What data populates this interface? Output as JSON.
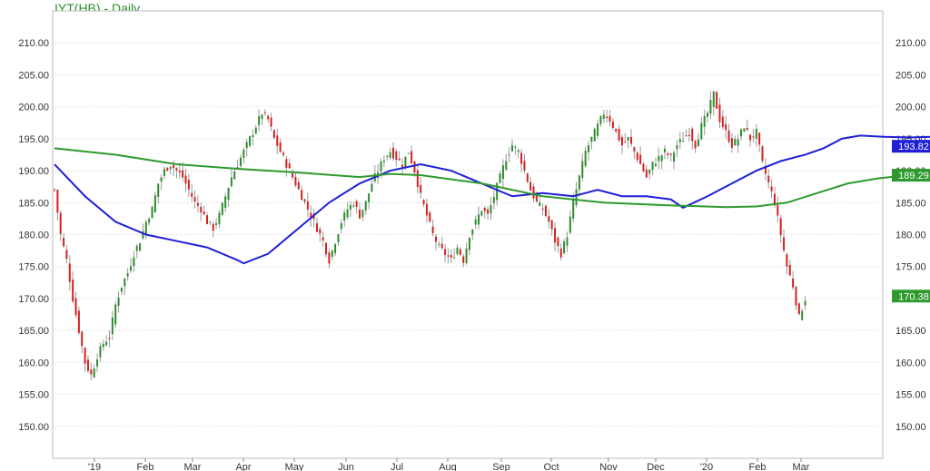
{
  "chart_data": {
    "type": "candlestick",
    "title": "IYT(HB) - Daily",
    "ylim": [
      145,
      215
    ],
    "grid": true,
    "y_ticks": [
      150,
      155,
      160,
      165,
      170,
      175,
      180,
      185,
      190,
      195,
      200,
      205,
      210
    ],
    "y_tick_labels": [
      "150.00",
      "155.00",
      "160.00",
      "165.00",
      "170.00",
      "175.00",
      "180.00",
      "185.00",
      "190.00",
      "195.00",
      "200.00",
      "205.00",
      "210.00"
    ],
    "x_tick_labels": [
      "'19",
      "Feb",
      "Mar",
      "Apr",
      "May",
      "Jun",
      "Jul",
      "Aug",
      "Sep",
      "Oct",
      "Nov",
      "Dec",
      "'20",
      "Feb",
      "Mar"
    ],
    "price_path": [
      [
        0,
        187
      ],
      [
        2,
        180
      ],
      [
        4,
        176
      ],
      [
        6,
        170
      ],
      [
        8,
        165
      ],
      [
        10,
        160
      ],
      [
        12,
        158
      ],
      [
        14,
        161
      ],
      [
        16,
        163
      ],
      [
        18,
        164
      ],
      [
        20,
        169
      ],
      [
        22,
        172
      ],
      [
        24,
        174
      ],
      [
        26,
        177
      ],
      [
        28,
        179
      ],
      [
        30,
        182
      ],
      [
        32,
        184
      ],
      [
        34,
        188
      ],
      [
        36,
        190
      ],
      [
        38,
        191
      ],
      [
        40,
        190
      ],
      [
        42,
        189
      ],
      [
        44,
        187
      ],
      [
        46,
        185
      ],
      [
        48,
        184
      ],
      [
        50,
        182
      ],
      [
        52,
        181
      ],
      [
        54,
        183
      ],
      [
        56,
        186
      ],
      [
        58,
        189
      ],
      [
        60,
        191
      ],
      [
        62,
        193
      ],
      [
        64,
        195
      ],
      [
        66,
        197
      ],
      [
        68,
        199
      ],
      [
        70,
        198
      ],
      [
        72,
        195
      ],
      [
        74,
        193
      ],
      [
        76,
        191
      ],
      [
        78,
        189
      ],
      [
        80,
        187
      ],
      [
        82,
        185
      ],
      [
        84,
        183
      ],
      [
        86,
        181
      ],
      [
        88,
        179
      ],
      [
        90,
        176
      ],
      [
        92,
        179
      ],
      [
        94,
        182
      ],
      [
        96,
        184
      ],
      [
        98,
        185
      ],
      [
        100,
        183
      ],
      [
        102,
        185
      ],
      [
        104,
        188
      ],
      [
        106,
        190
      ],
      [
        108,
        192
      ],
      [
        110,
        193
      ],
      [
        112,
        192
      ],
      [
        114,
        191
      ],
      [
        116,
        193
      ],
      [
        118,
        190
      ],
      [
        120,
        186
      ],
      [
        122,
        183
      ],
      [
        124,
        180
      ],
      [
        126,
        178
      ],
      [
        128,
        177
      ],
      [
        130,
        176
      ],
      [
        132,
        178
      ],
      [
        134,
        176
      ],
      [
        136,
        180
      ],
      [
        138,
        182
      ],
      [
        140,
        184
      ],
      [
        142,
        183
      ],
      [
        144,
        186
      ],
      [
        146,
        189
      ],
      [
        148,
        192
      ],
      [
        150,
        194
      ],
      [
        152,
        193
      ],
      [
        154,
        190
      ],
      [
        156,
        187
      ],
      [
        158,
        185
      ],
      [
        160,
        184
      ],
      [
        162,
        182
      ],
      [
        164,
        179
      ],
      [
        166,
        177
      ],
      [
        168,
        180
      ],
      [
        170,
        185
      ],
      [
        172,
        189
      ],
      [
        174,
        193
      ],
      [
        176,
        195
      ],
      [
        178,
        197
      ],
      [
        180,
        199
      ],
      [
        182,
        198
      ],
      [
        184,
        196
      ],
      [
        186,
        194
      ],
      [
        188,
        195
      ],
      [
        190,
        193
      ],
      [
        192,
        191
      ],
      [
        194,
        189
      ],
      [
        196,
        191
      ],
      [
        198,
        192
      ],
      [
        200,
        193
      ],
      [
        202,
        192
      ],
      [
        204,
        194
      ],
      [
        206,
        195
      ],
      [
        208,
        196
      ],
      [
        210,
        194
      ],
      [
        212,
        197
      ],
      [
        214,
        199
      ],
      [
        216,
        202
      ],
      [
        218,
        198
      ],
      [
        220,
        196
      ],
      [
        222,
        194
      ],
      [
        224,
        195
      ],
      [
        226,
        197
      ],
      [
        228,
        195
      ],
      [
        230,
        196
      ],
      [
        232,
        191
      ],
      [
        234,
        188
      ],
      [
        236,
        185
      ],
      [
        238,
        180
      ],
      [
        240,
        175
      ],
      [
        242,
        172
      ],
      [
        244,
        167
      ],
      [
        246,
        170
      ]
    ],
    "series": [
      {
        "name": "",
        "values_at": [
          [
            0,
            191
          ],
          [
            10,
            186
          ],
          [
            20,
            182
          ],
          [
            30,
            180
          ],
          [
            40,
            179
          ],
          [
            50,
            178
          ],
          [
            60,
            176
          ],
          [
            62,
            175.5
          ],
          [
            70,
            177
          ],
          [
            80,
            181
          ],
          [
            90,
            185
          ],
          [
            100,
            188
          ],
          [
            110,
            190
          ],
          [
            120,
            191
          ],
          [
            130,
            190
          ],
          [
            140,
            188
          ],
          [
            150,
            186
          ],
          [
            160,
            186.5
          ],
          [
            170,
            186
          ],
          [
            178,
            187
          ],
          [
            186,
            186
          ],
          [
            194,
            186
          ],
          [
            202,
            185.5
          ],
          [
            206,
            184.2
          ],
          [
            214,
            186
          ],
          [
            222,
            188
          ],
          [
            230,
            190
          ],
          [
            238,
            191.5
          ],
          [
            246,
            192.5
          ],
          [
            252,
            193.5
          ],
          [
            258,
            195
          ],
          [
            264,
            195.5
          ],
          [
            272,
            195.3
          ],
          [
            280,
            195.2
          ],
          [
            288,
            195.3
          ],
          [
            296,
            194
          ],
          [
            300,
            193.82
          ]
        ],
        "color": "#1f1fd8",
        "last_label": "193.82"
      },
      {
        "name": "",
        "values_at": [
          [
            0,
            193.5
          ],
          [
            20,
            192.5
          ],
          [
            40,
            191
          ],
          [
            60,
            190.3
          ],
          [
            80,
            189.7
          ],
          [
            100,
            189
          ],
          [
            110,
            189.5
          ],
          [
            120,
            189.3
          ],
          [
            140,
            188
          ],
          [
            160,
            186
          ],
          [
            180,
            185
          ],
          [
            200,
            184.6
          ],
          [
            220,
            184.3
          ],
          [
            230,
            184.4
          ],
          [
            240,
            185
          ],
          [
            250,
            186.5
          ],
          [
            260,
            188
          ],
          [
            270,
            188.8
          ],
          [
            280,
            189.3
          ],
          [
            290,
            189.6
          ],
          [
            300,
            189.29
          ]
        ],
        "color": "#2e9a2e",
        "last_label": "189.29"
      }
    ],
    "last_price_label": "170.38"
  }
}
